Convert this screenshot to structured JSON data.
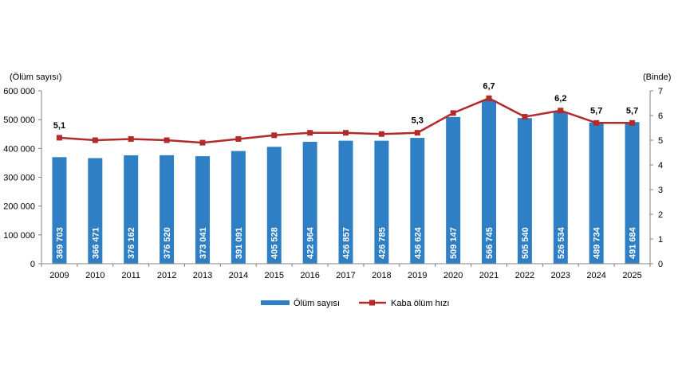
{
  "chart_data": {
    "type": "bar",
    "categories": [
      "2009",
      "2010",
      "2011",
      "2012",
      "2013",
      "2014",
      "2015",
      "2016",
      "2017",
      "2018",
      "2019",
      "2020",
      "2021",
      "2022",
      "2023",
      "2024",
      "2025"
    ],
    "series": [
      {
        "name": "Ölüm sayısı",
        "type": "bar",
        "axis": "left",
        "color": "#2E7FC3",
        "values": [
          369703,
          366471,
          376162,
          376520,
          373041,
          391091,
          405528,
          422964,
          426857,
          426785,
          436624,
          509147,
          566745,
          505540,
          526534,
          489734,
          491684
        ],
        "labels": [
          "369 703",
          "366 471",
          "376 162",
          "376 520",
          "373 041",
          "391 091",
          "405 528",
          "422 964",
          "426 857",
          "426 785",
          "436 624",
          "509 147",
          "566 745",
          "505 540",
          "526 534",
          "489 734",
          "491 684"
        ]
      },
      {
        "name": "Kaba ölüm hızı",
        "type": "line",
        "axis": "right",
        "color": "#B22A2A",
        "values": [
          5.1,
          5.0,
          5.05,
          5.0,
          4.9,
          5.05,
          5.2,
          5.3,
          5.3,
          5.25,
          5.3,
          6.1,
          6.7,
          5.95,
          6.2,
          5.7,
          5.7
        ],
        "point_labels": [
          "5,1",
          "",
          "",
          "",
          "",
          "",
          "",
          "",
          "",
          "",
          "5,3",
          "",
          "6,7",
          "",
          "6,2",
          "5,7",
          "5,7"
        ]
      }
    ],
    "left_axis": {
      "unit_label": "(Ölüm sayısı)",
      "ylim": [
        0,
        600000
      ],
      "ticks": [
        0,
        100000,
        200000,
        300000,
        400000,
        500000,
        600000
      ],
      "tick_labels": [
        "0",
        "100 000",
        "200 000",
        "300 000",
        "400 000",
        "500 000",
        "600 000"
      ]
    },
    "right_axis": {
      "unit_label": "(Binde)",
      "ylim": [
        0,
        7
      ],
      "ticks": [
        0,
        1,
        2,
        3,
        4,
        5,
        6,
        7
      ],
      "tick_labels": [
        "0",
        "1",
        "2",
        "3",
        "4",
        "5",
        "6",
        "7"
      ]
    },
    "grid": false,
    "legend_position": "bottom"
  }
}
